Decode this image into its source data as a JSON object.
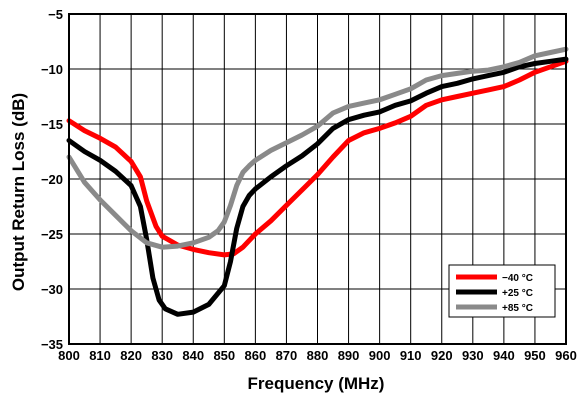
{
  "chart_data": {
    "type": "line",
    "title": "",
    "xlabel": "Frequency (MHz)",
    "ylabel": "Output Return Loss (dB)",
    "xlim": [
      800,
      960
    ],
    "ylim": [
      -35,
      -5
    ],
    "xticks": [
      800,
      810,
      820,
      830,
      840,
      850,
      860,
      870,
      880,
      890,
      900,
      910,
      920,
      930,
      940,
      950,
      960
    ],
    "yticks": [
      -5,
      -10,
      -15,
      -20,
      -25,
      -30,
      -35
    ],
    "grid": true,
    "legend_position": "bottom-right",
    "series": [
      {
        "name": "−40 °C",
        "color": "#ff0000",
        "x": [
          800,
          805,
          810,
          815,
          820,
          823,
          825,
          828,
          830,
          835,
          840,
          845,
          850,
          853,
          856,
          860,
          865,
          870,
          875,
          880,
          885,
          890,
          895,
          900,
          905,
          910,
          915,
          920,
          925,
          930,
          935,
          940,
          945,
          950,
          955,
          960
        ],
        "y": [
          -14.7,
          -15.6,
          -16.3,
          -17.1,
          -18.4,
          -19.8,
          -22.0,
          -24.3,
          -25.2,
          -26.0,
          -26.4,
          -26.7,
          -26.9,
          -26.8,
          -26.2,
          -25.0,
          -23.8,
          -22.4,
          -21.0,
          -19.6,
          -18.0,
          -16.5,
          -15.8,
          -15.4,
          -14.9,
          -14.3,
          -13.3,
          -12.8,
          -12.5,
          -12.2,
          -11.9,
          -11.6,
          -11.0,
          -10.3,
          -9.8,
          -9.3
        ]
      },
      {
        "name": "+25 °C",
        "color": "#000000",
        "x": [
          800,
          805,
          810,
          815,
          820,
          823,
          825,
          827,
          829,
          831,
          835,
          840,
          845,
          850,
          852,
          854,
          856,
          858,
          860,
          865,
          870,
          875,
          880,
          885,
          890,
          895,
          900,
          905,
          910,
          915,
          920,
          925,
          930,
          935,
          940,
          945,
          950,
          955,
          960
        ],
        "y": [
          -16.5,
          -17.5,
          -18.3,
          -19.3,
          -20.6,
          -22.5,
          -25.5,
          -29.0,
          -31.0,
          -31.8,
          -32.3,
          -32.1,
          -31.4,
          -29.7,
          -27.5,
          -24.5,
          -22.5,
          -21.5,
          -20.9,
          -19.8,
          -18.8,
          -17.9,
          -16.8,
          -15.4,
          -14.6,
          -14.2,
          -13.9,
          -13.3,
          -12.9,
          -12.2,
          -11.6,
          -11.3,
          -10.9,
          -10.6,
          -10.3,
          -9.8,
          -9.5,
          -9.3,
          -9.1
        ]
      },
      {
        "name": "+85 °C",
        "color": "#8a8a8a",
        "x": [
          800,
          805,
          810,
          815,
          820,
          825,
          830,
          835,
          840,
          845,
          848,
          850,
          852,
          854,
          856,
          858,
          860,
          865,
          870,
          875,
          880,
          885,
          890,
          895,
          900,
          905,
          910,
          915,
          920,
          925,
          930,
          935,
          940,
          945,
          950,
          955,
          960
        ],
        "y": [
          -18.0,
          -20.3,
          -21.9,
          -23.3,
          -24.7,
          -25.8,
          -26.2,
          -26.1,
          -25.8,
          -25.3,
          -24.7,
          -23.9,
          -22.4,
          -20.6,
          -19.4,
          -18.8,
          -18.3,
          -17.4,
          -16.7,
          -16.0,
          -15.2,
          -14.0,
          -13.4,
          -13.1,
          -12.8,
          -12.3,
          -11.8,
          -11.0,
          -10.6,
          -10.4,
          -10.2,
          -10.1,
          -9.8,
          -9.4,
          -8.8,
          -8.5,
          -8.2
        ]
      }
    ]
  }
}
